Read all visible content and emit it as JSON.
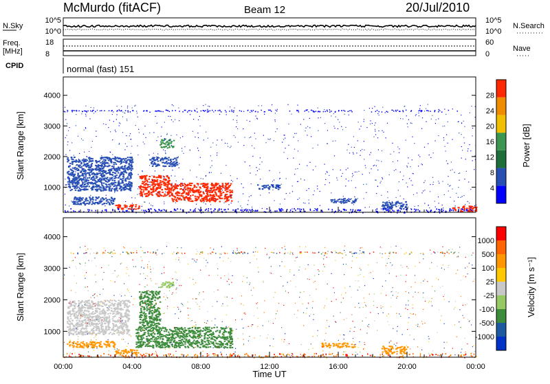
{
  "header": {
    "station": "McMurdo (fitACF)",
    "beam": "Beam 12",
    "date": "20/Jul/2010"
  },
  "top_panels": {
    "nsky_label": "N.Sky",
    "nsky_ticks": [
      "10^5",
      "10^0"
    ],
    "nsearch_label": "N.Search",
    "nsearch_ticks": [
      "10^5",
      "10^0"
    ],
    "freq_label": "Freq.",
    "freq_unit": "[MHz]",
    "freq_ticks": [
      "18",
      "8"
    ],
    "nave_label": "Nave",
    "nave_ticks": [
      "60",
      "0"
    ],
    "cpid_label": "CPID",
    "cpid_text": "normal (fast) 151"
  },
  "colors": {
    "power": [
      "#0000ff",
      "#2850b4",
      "#1e6e3c",
      "#3c9650",
      "#f0c000",
      "#f08c00",
      "#ff2800"
    ],
    "velocity": [
      "#ff0000",
      "#ff6400",
      "#ff9600",
      "#ffc800",
      "#c8c8c8",
      "#96c864",
      "#3c8c3c",
      "#1e5aa0",
      "#0032c8"
    ],
    "line": "#000000"
  },
  "chart_data": [
    {
      "type": "heatmap",
      "name": "power-panel",
      "ylabel": "Slant Range [km]",
      "xlabel": "Time UT",
      "x_ticks": [
        "00:00",
        "04:00",
        "08:00",
        "12:00",
        "16:00",
        "20:00",
        "00:00"
      ],
      "y_ticks": [
        "1000",
        "2000",
        "3000",
        "4000"
      ],
      "xlim_hours": [
        0,
        24
      ],
      "ylim_km": [
        180,
        4600
      ],
      "colorbar": {
        "label": "Power [dB]",
        "ticks": [
          "4",
          "8",
          "12",
          "16",
          "20",
          "24",
          "28"
        ]
      },
      "regions": [
        {
          "t0": 6.2,
          "t1": 9.8,
          "r0": 550,
          "r1": 1150,
          "value": "high"
        },
        {
          "t0": 4.4,
          "t1": 6.2,
          "r0": 700,
          "r1": 1400,
          "value": "high"
        },
        {
          "t0": 3.0,
          "t1": 4.4,
          "r0": 300,
          "r1": 450,
          "value": "high"
        },
        {
          "t0": 22.6,
          "t1": 24.0,
          "r0": 200,
          "r1": 400,
          "value": "high"
        },
        {
          "t0": 0.2,
          "t1": 4.0,
          "r0": 900,
          "r1": 2000,
          "value": "low"
        },
        {
          "t0": 0.5,
          "t1": 3.0,
          "r0": 450,
          "r1": 700,
          "value": "low"
        },
        {
          "t0": 5.6,
          "t1": 6.4,
          "r0": 2300,
          "r1": 2600,
          "value": "mid"
        },
        {
          "t0": 5.0,
          "t1": 6.6,
          "r0": 1700,
          "r1": 2000,
          "value": "low"
        },
        {
          "t0": 11.2,
          "t1": 12.6,
          "r0": 950,
          "r1": 1100,
          "value": "low"
        },
        {
          "t0": 15.5,
          "t1": 17.0,
          "r0": 500,
          "r1": 650,
          "value": "low"
        },
        {
          "t0": 18.5,
          "t1": 20.0,
          "r0": 300,
          "r1": 550,
          "value": "low"
        }
      ]
    },
    {
      "type": "heatmap",
      "name": "velocity-panel",
      "ylabel": "Slant Range [km]",
      "xlabel": "Time UT",
      "x_ticks": [
        "00:00",
        "04:00",
        "08:00",
        "12:00",
        "16:00",
        "20:00",
        "00:00"
      ],
      "y_ticks": [
        "1000",
        "2000",
        "3000",
        "4000"
      ],
      "xlim_hours": [
        0,
        24
      ],
      "ylim_km": [
        180,
        4600
      ],
      "colorbar": {
        "label": "Velocity [m s⁻¹]",
        "ticks": [
          "1000",
          "500",
          "100",
          "25",
          "-25",
          "-100",
          "-500",
          "-1000"
        ]
      },
      "regions": [
        {
          "t0": 4.2,
          "t1": 9.8,
          "r0": 500,
          "r1": 1150,
          "value": "green"
        },
        {
          "t0": 4.4,
          "t1": 5.6,
          "r0": 1150,
          "r1": 2300,
          "value": "green"
        },
        {
          "t0": 5.6,
          "t1": 6.4,
          "r0": 2400,
          "r1": 2600,
          "value": "lightgreen"
        },
        {
          "t0": 0.2,
          "t1": 3.8,
          "r0": 900,
          "r1": 2000,
          "value": "gray"
        },
        {
          "t0": 0.2,
          "t1": 3.0,
          "r0": 500,
          "r1": 700,
          "value": "orange"
        },
        {
          "t0": 3.0,
          "t1": 4.4,
          "r0": 300,
          "r1": 450,
          "value": "orange"
        },
        {
          "t0": 15.0,
          "t1": 17.0,
          "r0": 500,
          "r1": 650,
          "value": "orange"
        },
        {
          "t0": 18.5,
          "t1": 20.0,
          "r0": 300,
          "r1": 550,
          "value": "orange"
        }
      ]
    }
  ]
}
